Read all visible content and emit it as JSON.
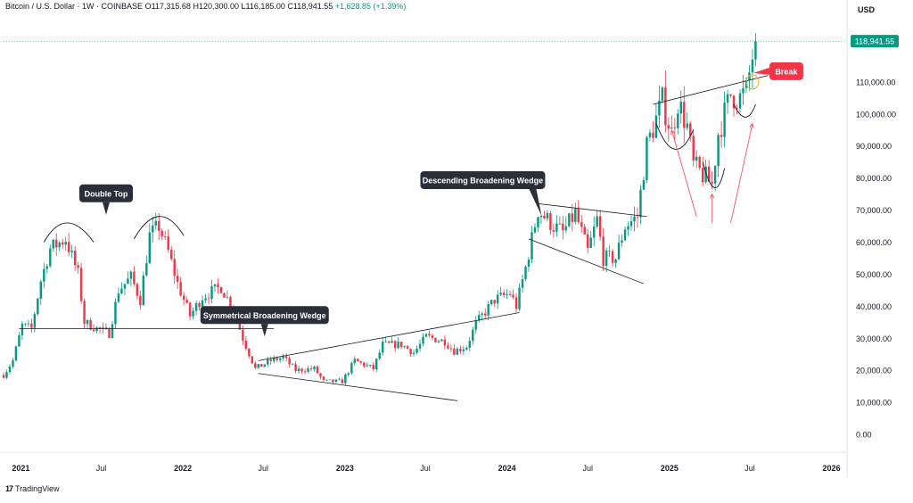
{
  "header": {
    "symbol": "Bitcoin / U.S. Dollar · 1W · COINBASE",
    "ohlc": "O117,315.68 H120,300.00 L116,185.00 C118,941.55",
    "change": "+1,628.85 (+1.39%)"
  },
  "currency": "USD",
  "last_price": "118,941.55",
  "branding": {
    "logo_mark": "17",
    "name": "TradingView"
  },
  "colors": {
    "up": "#089981",
    "down": "#f23645",
    "line": "#131722",
    "break": "#f23645",
    "price_tag": "#089981"
  },
  "chart_data": {
    "type": "candlestick",
    "title": "",
    "ylim": [
      -5000,
      130000
    ],
    "x_start_date": "2020-11-23",
    "x_end_date": "2026-02-01",
    "y_ticks": [
      {
        "value": 0,
        "label": "0.00"
      },
      {
        "value": 10000,
        "label": "10,000.00"
      },
      {
        "value": 20000,
        "label": "20,000.00"
      },
      {
        "value": 30000,
        "label": "30,000.00"
      },
      {
        "value": 40000,
        "label": "40,000.00"
      },
      {
        "value": 50000,
        "label": "50,000.00"
      },
      {
        "value": 60000,
        "label": "60,000.00"
      },
      {
        "value": 70000,
        "label": "70,000.00"
      },
      {
        "value": 80000,
        "label": "80,000.00"
      },
      {
        "value": 90000,
        "label": "90,000.00"
      },
      {
        "value": 100000,
        "label": "100,000.00"
      },
      {
        "value": 110000,
        "label": "110,000.00"
      }
    ],
    "x_ticks": [
      {
        "date": "2021-01-01",
        "label": "2021",
        "bold": true
      },
      {
        "date": "2021-07-01",
        "label": "Jul",
        "bold": false
      },
      {
        "date": "2022-01-01",
        "label": "2022",
        "bold": true
      },
      {
        "date": "2022-07-01",
        "label": "Jul",
        "bold": false
      },
      {
        "date": "2023-01-01",
        "label": "2023",
        "bold": true
      },
      {
        "date": "2023-07-01",
        "label": "Jul",
        "bold": false
      },
      {
        "date": "2024-01-01",
        "label": "2024",
        "bold": true
      },
      {
        "date": "2024-07-01",
        "label": "Jul",
        "bold": false
      },
      {
        "date": "2025-01-01",
        "label": "2025",
        "bold": true
      },
      {
        "date": "2025-07-01",
        "label": "Jul",
        "bold": false
      },
      {
        "date": "2026-01-01",
        "label": "2026",
        "bold": true
      }
    ],
    "price_path": [
      [
        "2020-11-23",
        18500
      ],
      [
        "2020-12-14",
        23000
      ],
      [
        "2021-01-04",
        34000
      ],
      [
        "2021-01-25",
        33000
      ],
      [
        "2021-02-15",
        48000
      ],
      [
        "2021-03-08",
        58000
      ],
      [
        "2021-04-12",
        61000
      ],
      [
        "2021-05-10",
        50000
      ],
      [
        "2021-05-24",
        35000
      ],
      [
        "2021-06-21",
        33000
      ],
      [
        "2021-07-19",
        31500
      ],
      [
        "2021-08-09",
        45000
      ],
      [
        "2021-09-06",
        49000
      ],
      [
        "2021-09-27",
        42000
      ],
      [
        "2021-10-18",
        62000
      ],
      [
        "2021-11-08",
        65000
      ],
      [
        "2021-11-29",
        57000
      ],
      [
        "2021-12-20",
        47000
      ],
      [
        "2022-01-17",
        37000
      ],
      [
        "2022-02-14",
        43000
      ],
      [
        "2022-03-28",
        46000
      ],
      [
        "2022-04-25",
        39000
      ],
      [
        "2022-05-16",
        30000
      ],
      [
        "2022-06-13",
        20500
      ],
      [
        "2022-07-18",
        23000
      ],
      [
        "2022-08-15",
        24000
      ],
      [
        "2022-09-12",
        20000
      ],
      [
        "2022-10-24",
        20500
      ],
      [
        "2022-11-14",
        16500
      ],
      [
        "2022-12-26",
        16500
      ],
      [
        "2023-01-23",
        23000
      ],
      [
        "2023-03-06",
        20500
      ],
      [
        "2023-03-27",
        28000
      ],
      [
        "2023-05-08",
        28000
      ],
      [
        "2023-06-05",
        25500
      ],
      [
        "2023-07-03",
        30500
      ],
      [
        "2023-08-14",
        29000
      ],
      [
        "2023-09-04",
        26000
      ],
      [
        "2023-10-02",
        27500
      ],
      [
        "2023-10-23",
        34500
      ],
      [
        "2023-12-04",
        42000
      ],
      [
        "2024-01-08",
        44000
      ],
      [
        "2024-01-22",
        40000
      ],
      [
        "2024-02-12",
        52000
      ],
      [
        "2024-03-11",
        70000
      ],
      [
        "2024-04-15",
        65000
      ],
      [
        "2024-05-06",
        63000
      ],
      [
        "2024-06-03",
        69000
      ],
      [
        "2024-07-01",
        57000
      ],
      [
        "2024-07-22",
        67000
      ],
      [
        "2024-08-05",
        55000
      ],
      [
        "2024-09-02",
        55000
      ],
      [
        "2024-09-23",
        65000
      ],
      [
        "2024-10-21",
        68000
      ],
      [
        "2024-11-11",
        90000
      ],
      [
        "2024-12-16",
        104000
      ],
      [
        "2025-01-06",
        94000
      ],
      [
        "2025-01-20",
        104000
      ],
      [
        "2025-02-10",
        96000
      ],
      [
        "2025-02-24",
        84000
      ],
      [
        "2025-03-10",
        82000
      ],
      [
        "2025-04-07",
        78000
      ],
      [
        "2025-04-21",
        94000
      ],
      [
        "2025-05-19",
        106000
      ],
      [
        "2025-06-09",
        105000
      ],
      [
        "2025-06-23",
        107000
      ],
      [
        "2025-07-07",
        118000
      ],
      [
        "2025-07-14",
        118941
      ]
    ],
    "candles": [],
    "patterns": [
      {
        "name": "double-top-neckline",
        "points": [
          [
            "2020-12-28",
            33000
          ],
          [
            "2022-07-25",
            33000
          ]
        ]
      },
      {
        "name": "symmetrical-wedge-upper",
        "points": [
          [
            "2022-06-20",
            23000
          ],
          [
            "2024-01-29",
            38000
          ]
        ]
      },
      {
        "name": "symmetrical-wedge-lower",
        "points": [
          [
            "2022-06-20",
            19000
          ],
          [
            "2023-09-11",
            10500
          ]
        ]
      },
      {
        "name": "descending-wedge-upper",
        "points": [
          [
            "2024-03-11",
            72000
          ],
          [
            "2024-11-11",
            68000
          ]
        ]
      },
      {
        "name": "descending-wedge-lower",
        "points": [
          [
            "2024-02-19",
            61000
          ],
          [
            "2024-11-04",
            47000
          ]
        ]
      },
      {
        "name": "resistance-line",
        "points": [
          [
            "2024-11-25",
            103000
          ],
          [
            "2025-08-11",
            112000
          ]
        ]
      }
    ],
    "arcs": [
      {
        "name": "double-top-arc-1",
        "from": [
          "2021-02-22",
          60000
        ],
        "peak": [
          "2021-04-12",
          66000
        ],
        "to": [
          "2021-06-14",
          60000
        ]
      },
      {
        "name": "double-top-arc-2",
        "from": [
          "2021-09-13",
          61000
        ],
        "peak": [
          "2021-11-08",
          68000
        ],
        "to": [
          "2022-01-03",
          62000
        ]
      },
      {
        "name": "cup-arc-1",
        "from": [
          "2024-12-02",
          97000
        ],
        "trough": [
          "2025-01-13",
          89000
        ],
        "to": [
          "2025-02-24",
          95000
        ]
      },
      {
        "name": "cup-arc-2",
        "from": [
          "2025-03-17",
          85000
        ],
        "trough": [
          "2025-04-14",
          77000
        ],
        "to": [
          "2025-05-05",
          83000
        ]
      },
      {
        "name": "cup-arc-3",
        "from": [
          "2025-05-26",
          103000
        ],
        "trough": [
          "2025-06-23",
          99000
        ],
        "to": [
          "2025-07-14",
          103000
        ]
      }
    ],
    "arrows": [
      {
        "name": "arrow-1",
        "from": [
          "2025-03-03",
          68000
        ],
        "to": [
          "2025-01-06",
          95000
        ]
      },
      {
        "name": "arrow-2",
        "from": [
          "2025-04-07",
          66000
        ],
        "to": [
          "2025-04-07",
          75000
        ]
      },
      {
        "name": "arrow-3",
        "from": [
          "2025-05-19",
          66000
        ],
        "to": [
          "2025-07-07",
          97000
        ]
      }
    ],
    "annotations": [
      {
        "name": "double-top-label",
        "text": "Double Top",
        "anchor": [
          "2021-07-12",
          73000
        ]
      },
      {
        "name": "symmetrical-wedge-label",
        "text": "Symmetrical Broadening Wedge",
        "anchor": [
          "2022-07-04",
          35000
        ]
      },
      {
        "name": "descending-wedge-label",
        "text": "Descending Broadening Wedge",
        "anchor": [
          "2024-03-11",
          71000
        ]
      },
      {
        "name": "break-label",
        "text": "Break",
        "anchor": [
          "2025-07-21",
          110000
        ]
      }
    ],
    "break_circle": [
      "2025-07-07",
      110000
    ]
  }
}
